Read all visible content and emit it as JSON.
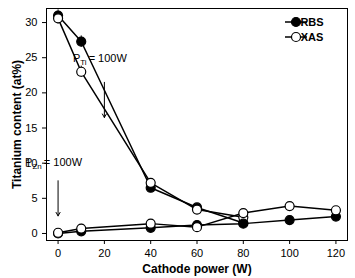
{
  "chart_data": {
    "type": "line",
    "x_label": "Cathode power (W)",
    "y_label": "Titanium content (at%)",
    "x": [
      0,
      10,
      40,
      60,
      80,
      100,
      120
    ],
    "series": [
      {
        "name": "RBS",
        "color": "#000000",
        "marker": "filled_circle",
        "values": [
          31,
          27.3,
          6.5,
          3.7,
          1.5,
          null,
          null
        ],
        "errors": [
          0.8,
          0.8,
          0.6,
          0.5,
          0.4,
          null,
          null
        ]
      },
      {
        "name": "XAS",
        "color": "#000000",
        "marker": "open_circle",
        "values": [
          30.6,
          23,
          7.2,
          3.4,
          2.3,
          null,
          null
        ],
        "errors": [
          0.8,
          0.8,
          0.6,
          0.5,
          0.4,
          null,
          null
        ]
      },
      {
        "name": "RBS",
        "color": "#000000",
        "marker": "filled_circle",
        "values": [
          0,
          0.3,
          0.8,
          1.2,
          1.4,
          1.9,
          2.4
        ],
        "errors": [
          0.6,
          0.6,
          0.5,
          0.5,
          0.4,
          0.4,
          0.4
        ]
      },
      {
        "name": "XAS",
        "color": "#000000",
        "marker": "open_circle",
        "values": [
          0.1,
          0.7,
          1.4,
          0.9,
          2.9,
          3.9,
          3.3
        ],
        "errors": [
          0.6,
          0.6,
          0.5,
          0.5,
          0.5,
          0.5,
          0.5
        ]
      }
    ],
    "xlim": [
      -5,
      125
    ],
    "xticks": [
      0,
      20,
      40,
      60,
      80,
      100,
      120
    ],
    "ylim": [
      -1,
      32
    ],
    "yticks": [
      0,
      5,
      10,
      15,
      20,
      25,
      30
    ],
    "legend": "top-right",
    "annotations": [
      {
        "text": "P",
        "subscript": "Ti",
        "suffix": "= 100W",
        "x": 20,
        "y": 24.3,
        "arrow_from": [
          20,
          21.5
        ],
        "arrow_to": [
          20,
          16.5
        ]
      },
      {
        "text": "P",
        "subscript": "Zn",
        "suffix": "= 100W",
        "x": 0,
        "y": 9.5,
        "arrow_from": [
          0,
          7.5
        ],
        "arrow_to": [
          0,
          2.5
        ]
      }
    ]
  }
}
